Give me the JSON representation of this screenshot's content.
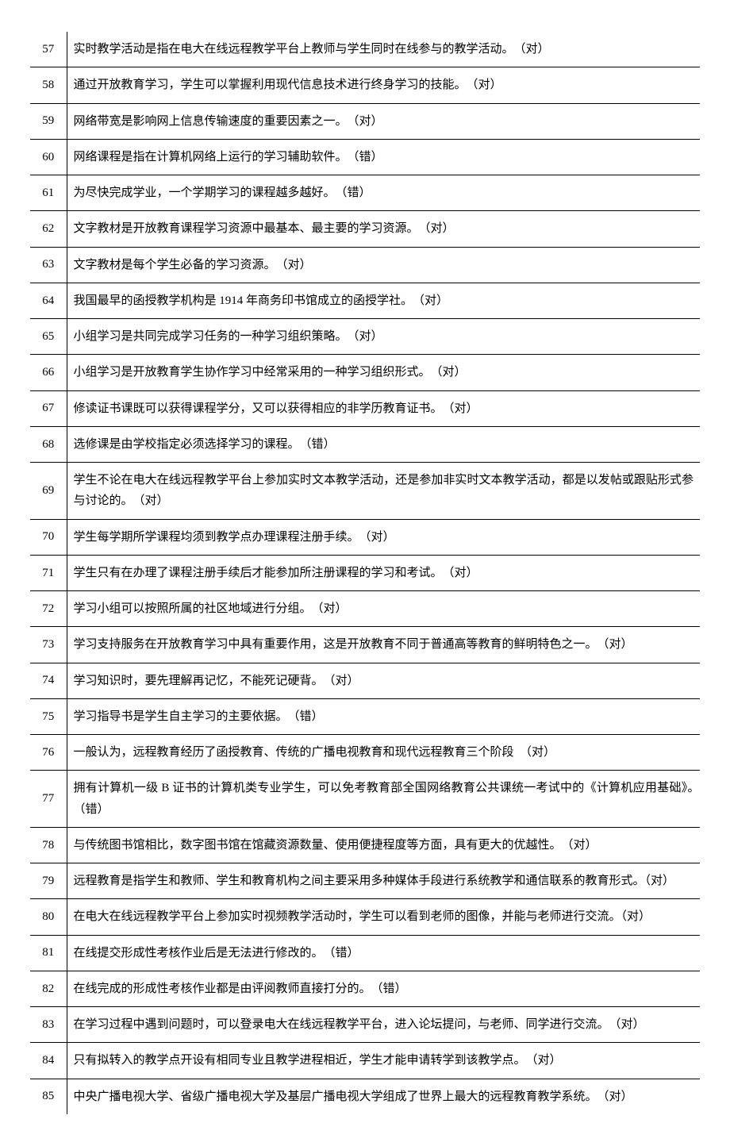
{
  "rows": [
    {
      "n": "57",
      "t": "实时教学活动是指在电大在线远程教学平台上教师与学生同时在线参与的教学活动。　（对）"
    },
    {
      "n": "58",
      "t": "通过开放教育学习，学生可以掌握利用现代信息技术进行终身学习的技能。　（对）"
    },
    {
      "n": "59",
      "t": "网络带宽是影响网上信息传输速度的重要因素之一。　（对）"
    },
    {
      "n": "60",
      "t": "网络课程是指在计算机网络上运行的学习辅助软件。　（错）"
    },
    {
      "n": "61",
      "t": "为尽快完成学业，一个学期学习的课程越多越好。　（错）"
    },
    {
      "n": "62",
      "t": "文字教材是开放教育课程学习资源中最基本、最主要的学习资源。　（对）"
    },
    {
      "n": "63",
      "t": "文字教材是每个学生必备的学习资源。　（对）"
    },
    {
      "n": "64",
      "t": "我国最早的函授教学机构是 1914 年商务印书馆成立的函授学社。　（对）"
    },
    {
      "n": "65",
      "t": "小组学习是共同完成学习任务的一种学习组织策略。　（对）"
    },
    {
      "n": "66",
      "t": "小组学习是开放教育学生协作学习中经常采用的一种学习组织形式。　（对）"
    },
    {
      "n": "67",
      "t": "修读证书课既可以获得课程学分，又可以获得相应的非学历教育证书。　（对）"
    },
    {
      "n": "68",
      "t": "选修课是由学校指定必须选择学习的课程。　（错）"
    },
    {
      "n": "69",
      "t": "学生不论在电大在线远程教学平台上参加实时文本教学活动，还是参加非实时文本教学活动，都是以发帖或跟贴形式参与讨论的。　（对）"
    },
    {
      "n": "70",
      "t": "学生每学期所学课程均须到教学点办理课程注册手续。　（对）"
    },
    {
      "n": "71",
      "t": "学生只有在办理了课程注册手续后才能参加所注册课程的学习和考试。　（对）"
    },
    {
      "n": "72",
      "t": "学习小组可以按照所属的社区地域进行分组。　（对）"
    },
    {
      "n": "73",
      "t": "学习支持服务在开放教育学习中具有重要作用，这是开放教育不同于普通高等教育的鲜明特色之一。　（对）"
    },
    {
      "n": "74",
      "t": "学习知识时，要先理解再记忆，不能死记硬背。　（对）"
    },
    {
      "n": "75",
      "t": "学习指导书是学生自主学习的主要依据。　（错）"
    },
    {
      "n": "76",
      "t": "一般认为，远程教育经历了函授教育、传统的广播电视教育和现代远程教育三个阶段　（对）"
    },
    {
      "n": "77",
      "t": "拥有计算机一级 B 证书的计算机类专业学生，可以免考教育部全国网络教育公共课统一考试中的《计算机应用基础》。　（错）"
    },
    {
      "n": "78",
      "t": "与传统图书馆相比，数字图书馆在馆藏资源数量、使用便捷程度等方面，具有更大的优越性。　（对）"
    },
    {
      "n": "79",
      "t": "远程教育是指学生和教师、学生和教育机构之间主要采用多种媒体手段进行系统教学和通信联系的教育形式。（对）"
    },
    {
      "n": "80",
      "t": "在电大在线远程教学平台上参加实时视频教学活动时，学生可以看到老师的图像，并能与老师进行交流。（对）"
    },
    {
      "n": "81",
      "t": "在线提交形成性考核作业后是无法进行修改的。　（错）"
    },
    {
      "n": "82",
      "t": "在线完成的形成性考核作业都是由评阅教师直接打分的。　（错）"
    },
    {
      "n": "83",
      "t": "在学习过程中遇到问题时，可以登录电大在线远程教学平台，进入论坛提问，与老师、同学进行交流。　（对）"
    },
    {
      "n": "84",
      "t": "只有拟转入的教学点开设有相同专业且教学进程相近，学生才能申请转学到该教学点。　（对）"
    },
    {
      "n": "85",
      "t": "中央广播电视大学、省级广播电视大学及基层广播电视大学组成了世界上最大的远程教育教学系统。　（对）"
    }
  ]
}
